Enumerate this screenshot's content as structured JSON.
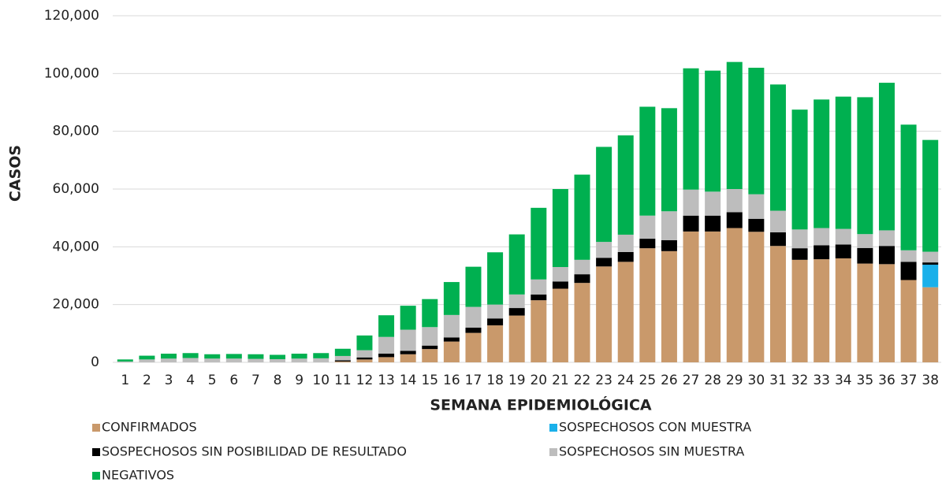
{
  "chart_data": {
    "type": "stacked_bar",
    "xlabel": "SEMANA EPIDEMIOLÓGICA",
    "ylabel": "CASOS",
    "categories": [
      "1",
      "2",
      "3",
      "4",
      "5",
      "6",
      "7",
      "8",
      "9",
      "10",
      "11",
      "12",
      "13",
      "14",
      "15",
      "16",
      "17",
      "18",
      "19",
      "20",
      "21",
      "22",
      "23",
      "24",
      "25",
      "26",
      "27",
      "28",
      "29",
      "30",
      "31",
      "32",
      "33",
      "34",
      "35",
      "36",
      "37",
      "38"
    ],
    "ylim": [
      0,
      120000
    ],
    "yticks": [
      0,
      {
        "value": 20000,
        "label": "20,000"
      },
      {
        "value": 40000,
        "label": "40,000"
      },
      {
        "value": 60000,
        "label": "60,000"
      },
      {
        "value": 80000,
        "label": "80,000"
      },
      {
        "value": 100000,
        "label": "100,000"
      },
      {
        "value": 120000,
        "label": "120,000"
      }
    ],
    "grid": true,
    "series": [
      {
        "name": "CONFIRMADOS",
        "color": "#c9996b",
        "values": [
          0,
          0,
          0,
          0,
          0,
          0,
          0,
          0,
          0,
          0,
          300,
          1000,
          1800,
          2800,
          4600,
          7200,
          10200,
          12800,
          16200,
          21500,
          25500,
          27500,
          33200,
          34800,
          39500,
          38500,
          45300,
          45300,
          46500,
          45200,
          40300,
          35500,
          35700,
          36000,
          34200,
          34000,
          28500,
          26000
        ]
      },
      {
        "name": "SOSPECHOSOS CON MUESTRA",
        "color": "#1ab0ea",
        "values": [
          0,
          0,
          0,
          0,
          0,
          0,
          0,
          0,
          0,
          0,
          0,
          0,
          0,
          0,
          0,
          0,
          0,
          0,
          0,
          0,
          0,
          0,
          0,
          0,
          0,
          0,
          0,
          0,
          0,
          0,
          0,
          0,
          0,
          0,
          0,
          0,
          0,
          7800
        ]
      },
      {
        "name": "SOSPECHOSOS SIN POSIBILIDAD DE RESULTADO",
        "color": "#000000",
        "values": [
          0,
          0,
          0,
          0,
          0,
          0,
          0,
          0,
          0,
          0,
          400,
          700,
          1200,
          1200,
          1200,
          1400,
          1800,
          2400,
          2600,
          2000,
          2500,
          3000,
          3000,
          3400,
          3300,
          3800,
          5500,
          5500,
          5500,
          4500,
          4700,
          4000,
          4800,
          4800,
          5400,
          6300,
          6300,
          800
        ]
      },
      {
        "name": "SOSPECHOSOS SIN MUESTRA",
        "color": "#bdbdbd",
        "values": [
          300,
          1000,
          1300,
          1500,
          1300,
          1300,
          1200,
          1100,
          1300,
          1400,
          1500,
          2500,
          5800,
          7300,
          6400,
          7800,
          7200,
          4800,
          4700,
          5200,
          5000,
          5000,
          5500,
          6000,
          8000,
          10000,
          9000,
          8300,
          8000,
          8500,
          7500,
          6500,
          6000,
          5400,
          4800,
          5400,
          4000,
          3700
        ]
      },
      {
        "name": "NEGATIVOS",
        "color": "#00b050",
        "values": [
          700,
          1300,
          1700,
          1700,
          1500,
          1600,
          1600,
          1500,
          1700,
          1800,
          2500,
          5100,
          7500,
          8300,
          9700,
          11400,
          13900,
          18100,
          20800,
          24800,
          27000,
          29500,
          32900,
          34400,
          37700,
          35700,
          42000,
          41900,
          44000,
          43800,
          43700,
          41500,
          44500,
          45800,
          47400,
          51100,
          43500,
          38700
        ]
      }
    ]
  }
}
